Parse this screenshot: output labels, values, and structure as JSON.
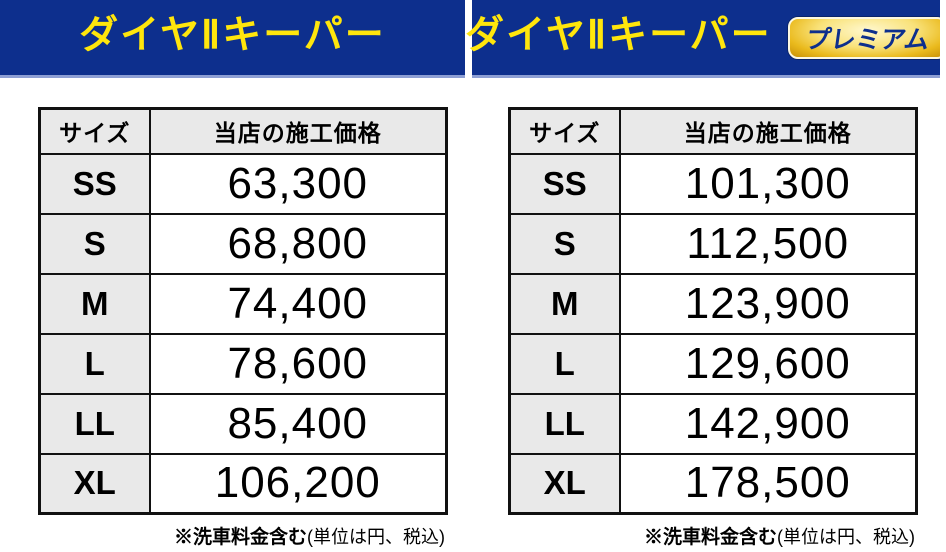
{
  "colors": {
    "banner_bg": "#0d2f8d",
    "banner_text": "#ffe60c",
    "banner_stripe": "#8d9fd4",
    "badge_text": "#0d2f8d",
    "badge_gold_dark": "#c68f06",
    "badge_gold_light": "#fff8cf",
    "table_header_bg": "#e9e9e9",
    "table_border": "#111111"
  },
  "panels": [
    {
      "title": "ダイヤⅡキーパー",
      "table": {
        "headers": [
          "サイズ",
          "当店の施工価格"
        ],
        "rows": [
          [
            "SS",
            "63,300"
          ],
          [
            "S",
            "68,800"
          ],
          [
            "M",
            "74,400"
          ],
          [
            "L",
            "78,600"
          ],
          [
            "LL",
            "85,400"
          ],
          [
            "XL",
            "106,200"
          ]
        ]
      },
      "note": {
        "bold": "※洗車料金含む",
        "regular": "(単位は円、税込)"
      }
    },
    {
      "title": "ダイヤⅡキーパー",
      "badge": "プレミアム",
      "table": {
        "headers": [
          "サイズ",
          "当店の施工価格"
        ],
        "rows": [
          [
            "SS",
            "101,300"
          ],
          [
            "S",
            "112,500"
          ],
          [
            "M",
            "123,900"
          ],
          [
            "L",
            "129,600"
          ],
          [
            "LL",
            "142,900"
          ],
          [
            "XL",
            "178,500"
          ]
        ]
      },
      "note": {
        "bold": "※洗車料金含む",
        "regular": "(単位は円、税込)"
      }
    }
  ]
}
